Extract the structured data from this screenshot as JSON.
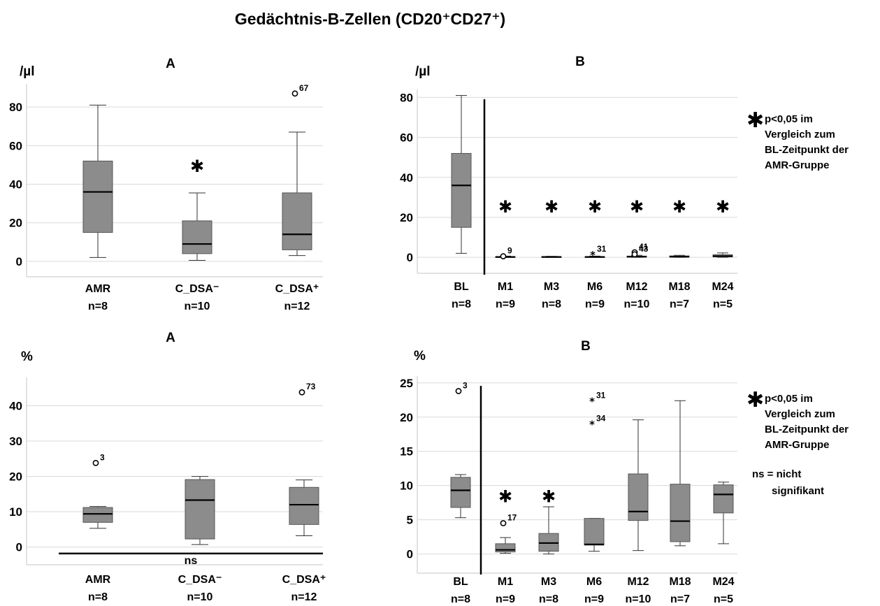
{
  "title": "Gedächtnis-B-Zellen (CD20⁺CD27⁺)",
  "legend": {
    "sig_symbol": "✱",
    "sig_text": [
      "p<0,05 im",
      "Vergleich zum",
      "BL-Zeitpunkt der",
      "AMR-Gruppe"
    ],
    "ns_text": [
      "ns = nicht",
      "signifikant"
    ]
  },
  "colors": {
    "box_fill": "#8c8c8c",
    "grid": "#d9d9d9",
    "axis": "#000000"
  },
  "chart_data": [
    {
      "type": "box",
      "panel_label": "A",
      "ylabel": "/µl",
      "ylim": [
        -8,
        92
      ],
      "yticks": [
        0,
        20,
        40,
        60,
        80
      ],
      "grid": true,
      "categories": [
        "AMR",
        "C_DSA⁻",
        "C_DSA⁺"
      ],
      "n_labels": [
        "n=8",
        "n=10",
        "n=12"
      ],
      "boxes": [
        {
          "whisker_low": 2,
          "q1": 15,
          "median": 36,
          "q3": 52,
          "whisker_high": 81
        },
        {
          "whisker_low": 0.5,
          "q1": 4,
          "median": 9,
          "q3": 21,
          "whisker_high": 35.5
        },
        {
          "whisker_low": 3,
          "q1": 6,
          "median": 14,
          "q3": 35.5,
          "whisker_high": 67
        }
      ],
      "outliers": [
        {
          "cat": 2,
          "y": 87,
          "label": "67",
          "shape": "circle"
        }
      ],
      "significance": [
        {
          "cat": 1,
          "y": 50,
          "symbol": "✱"
        }
      ],
      "baseline_divider": false,
      "ns_bar": null
    },
    {
      "type": "box",
      "panel_label": "B",
      "ylabel": "/µl",
      "ylim": [
        -8,
        84
      ],
      "yticks": [
        0,
        20,
        40,
        60,
        80
      ],
      "grid": true,
      "categories": [
        "BL",
        "M1",
        "M3",
        "M6",
        "M12",
        "M18",
        "M24"
      ],
      "n_labels": [
        "n=8",
        "n=9",
        "n=8",
        "n=9",
        "n=10",
        "n=7",
        "n=5"
      ],
      "boxes": [
        {
          "whisker_low": 2,
          "q1": 15,
          "median": 36,
          "q3": 52,
          "whisker_high": 81
        },
        {
          "whisker_low": 0,
          "q1": 0,
          "median": 0.2,
          "q3": 0.4,
          "whisker_high": 0.6
        },
        {
          "whisker_low": 0,
          "q1": 0,
          "median": 0.2,
          "q3": 0.4,
          "whisker_high": 0.5
        },
        {
          "whisker_low": 0,
          "q1": 0,
          "median": 0.2,
          "q3": 0.4,
          "whisker_high": 0.6
        },
        {
          "whisker_low": 0,
          "q1": 0.1,
          "median": 0.3,
          "q3": 0.6,
          "whisker_high": 1
        },
        {
          "whisker_low": 0,
          "q1": 0.1,
          "median": 0.3,
          "q3": 0.7,
          "whisker_high": 1
        },
        {
          "whisker_low": 0,
          "q1": 0.2,
          "median": 0.6,
          "q3": 1.3,
          "whisker_high": 2.2
        }
      ],
      "outliers": [
        {
          "cat": 1,
          "y": 0.5,
          "label": "9",
          "shape": "circle"
        },
        {
          "cat": 3,
          "y": 1.5,
          "label": "31",
          "shape": "star"
        },
        {
          "cat": 4,
          "y": 2.5,
          "label": "41",
          "shape": "circle"
        },
        {
          "cat": 4,
          "y": 1.5,
          "label": "43",
          "shape": "circle"
        }
      ],
      "significance": [
        {
          "cat": 1,
          "y": 26,
          "symbol": "✱"
        },
        {
          "cat": 2,
          "y": 26,
          "symbol": "✱"
        },
        {
          "cat": 3,
          "y": 26,
          "symbol": "✱"
        },
        {
          "cat": 4,
          "y": 26,
          "symbol": "✱"
        },
        {
          "cat": 5,
          "y": 26,
          "symbol": "✱"
        },
        {
          "cat": 6,
          "y": 26,
          "symbol": "✱"
        }
      ],
      "baseline_divider": true,
      "ns_bar": null
    },
    {
      "type": "box",
      "panel_label": "A",
      "ylabel": "%",
      "ylim": [
        -5,
        48
      ],
      "yticks": [
        0,
        10,
        20,
        30,
        40
      ],
      "grid": true,
      "categories": [
        "AMR",
        "C_DSA⁻",
        "C_DSA⁺"
      ],
      "n_labels": [
        "n=8",
        "n=10",
        "n=12"
      ],
      "boxes": [
        {
          "whisker_low": 5.3,
          "q1": 7,
          "median": 9.4,
          "q3": 11.2,
          "whisker_high": 11.5
        },
        {
          "whisker_low": 0.7,
          "q1": 2.3,
          "median": 13.3,
          "q3": 19.1,
          "whisker_high": 20
        },
        {
          "whisker_low": 3.2,
          "q1": 6.4,
          "median": 12,
          "q3": 16.9,
          "whisker_high": 19
        }
      ],
      "outliers": [
        {
          "cat": 0,
          "y": 23.8,
          "label": "3",
          "shape": "circle"
        },
        {
          "cat": 2,
          "y": 43.8,
          "label": "73",
          "shape": "circle"
        }
      ],
      "significance": [],
      "baseline_divider": false,
      "ns_bar": {
        "y": -1.8,
        "label": "ns"
      }
    },
    {
      "type": "box",
      "panel_label": "B",
      "ylabel": "%",
      "ylim": [
        -2.8,
        26
      ],
      "yticks": [
        0,
        5,
        10,
        15,
        20,
        25
      ],
      "grid": true,
      "categories": [
        "BL",
        "M1",
        "M3",
        "M6",
        "M12",
        "M18",
        "M24"
      ],
      "n_labels": [
        "n=8",
        "n=9",
        "n=8",
        "n=9",
        "n=10",
        "n=7",
        "n=5"
      ],
      "boxes": [
        {
          "whisker_low": 5.3,
          "q1": 6.8,
          "median": 9.3,
          "q3": 11.2,
          "whisker_high": 11.6
        },
        {
          "whisker_low": 0.1,
          "q1": 0.3,
          "median": 0.6,
          "q3": 1.5,
          "whisker_high": 2.4
        },
        {
          "whisker_low": 0,
          "q1": 0.4,
          "median": 1.6,
          "q3": 3,
          "whisker_high": 6.9
        },
        {
          "whisker_low": 0.4,
          "q1": 1.3,
          "median": 1.4,
          "q3": 5.2,
          "whisker_high": 5.2
        },
        {
          "whisker_low": 0.5,
          "q1": 4.9,
          "median": 6.2,
          "q3": 11.7,
          "whisker_high": 19.6
        },
        {
          "whisker_low": 1.2,
          "q1": 1.8,
          "median": 4.8,
          "q3": 10.2,
          "whisker_high": 22.4
        },
        {
          "whisker_low": 1.5,
          "q1": 6,
          "median": 8.7,
          "q3": 10.1,
          "whisker_high": 10.5
        }
      ],
      "outliers": [
        {
          "cat": 0,
          "y": 23.8,
          "label": "3",
          "shape": "circle"
        },
        {
          "cat": 1,
          "y": 4.5,
          "label": "17",
          "shape": "circle"
        },
        {
          "cat": 3,
          "y": 22.4,
          "label": "31",
          "shape": "star"
        },
        {
          "cat": 3,
          "y": 19,
          "label": "34",
          "shape": "star"
        }
      ],
      "significance": [
        {
          "cat": 1,
          "y": 8.6,
          "symbol": "✱"
        },
        {
          "cat": 2,
          "y": 8.6,
          "symbol": "✱"
        }
      ],
      "baseline_divider": true,
      "ns_bar": null
    }
  ]
}
